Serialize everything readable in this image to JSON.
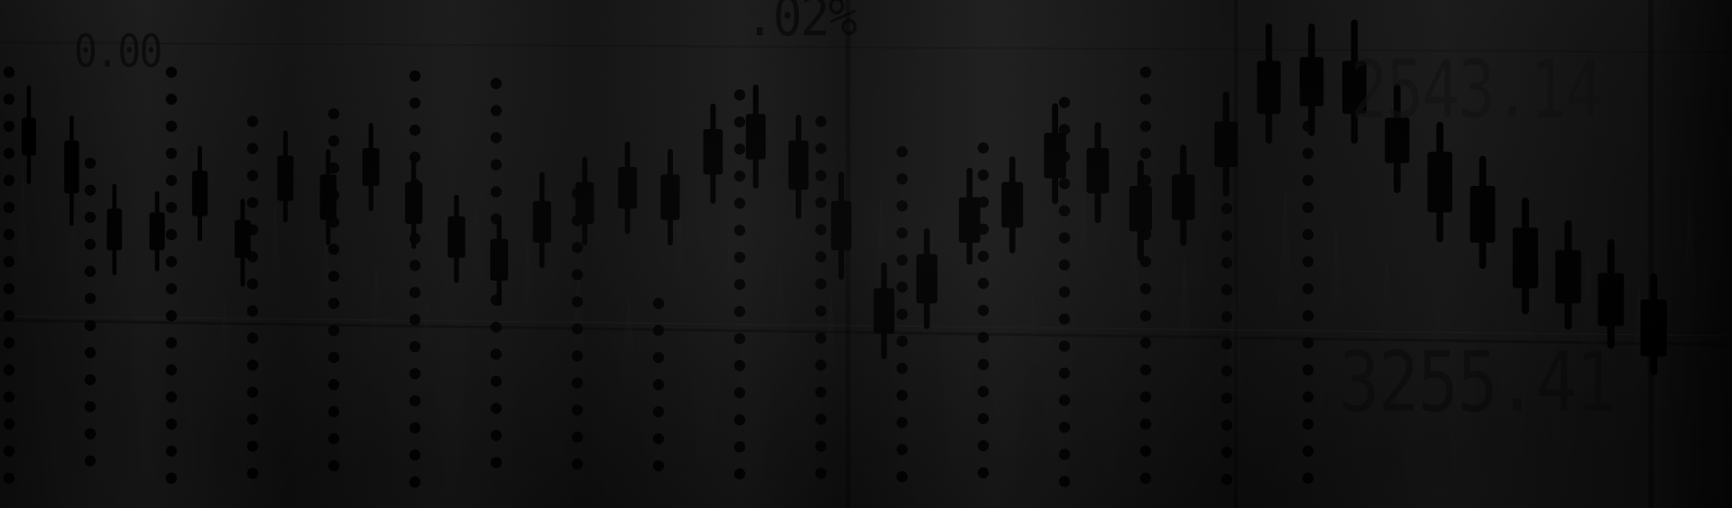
{
  "overlay_text": {
    "left_price": "0.00",
    "center_percent": ".02%",
    "right_price_top": "2543.14",
    "right_price_bottom": "3255.41"
  },
  "candlestick_visual": {
    "description_colors": {
      "background": "#141414",
      "candles": "#000000",
      "dots": "#000000"
    }
  },
  "chart_data": {
    "type": "candlestick",
    "title": "",
    "xlabel": "",
    "ylabel": "",
    "ylim": [
      0,
      100
    ],
    "candles": [
      {
        "open": 88,
        "close": 78,
        "high": 96,
        "low": 71
      },
      {
        "open": 82,
        "close": 68,
        "high": 88,
        "low": 60
      },
      {
        "open": 64,
        "close": 53,
        "high": 70,
        "low": 47
      },
      {
        "open": 63,
        "close": 53,
        "high": 68,
        "low": 48
      },
      {
        "open": 74,
        "close": 62,
        "high": 80,
        "low": 56
      },
      {
        "open": 61,
        "close": 51,
        "high": 66,
        "low": 44
      },
      {
        "open": 78,
        "close": 66,
        "high": 84,
        "low": 61
      },
      {
        "open": 73,
        "close": 61,
        "high": 79,
        "low": 55
      },
      {
        "open": 80,
        "close": 70,
        "high": 86,
        "low": 64
      },
      {
        "open": 71,
        "close": 60,
        "high": 77,
        "low": 54
      },
      {
        "open": 62,
        "close": 51,
        "high": 67,
        "low": 45
      },
      {
        "open": 56,
        "close": 45,
        "high": 61,
        "low": 39
      },
      {
        "open": 66,
        "close": 55,
        "high": 73,
        "low": 49
      },
      {
        "open": 71,
        "close": 60,
        "high": 77,
        "low": 55
      },
      {
        "open": 75,
        "close": 64,
        "high": 81,
        "low": 58
      },
      {
        "open": 73,
        "close": 61,
        "high": 79,
        "low": 55
      },
      {
        "open": 85,
        "close": 73,
        "high": 91,
        "low": 66
      },
      {
        "open": 89,
        "close": 77,
        "high": 96,
        "low": 70
      },
      {
        "open": 82,
        "close": 69,
        "high": 88,
        "low": 62
      },
      {
        "open": 66,
        "close": 53,
        "high": 73,
        "low": 46
      },
      {
        "open": 43,
        "close": 31,
        "high": 49,
        "low": 25
      },
      {
        "open": 52,
        "close": 39,
        "high": 58,
        "low": 33
      },
      {
        "open": 67,
        "close": 55,
        "high": 74,
        "low": 50
      },
      {
        "open": 71,
        "close": 59,
        "high": 77,
        "low": 53
      },
      {
        "open": 84,
        "close": 72,
        "high": 91,
        "low": 66
      },
      {
        "open": 80,
        "close": 68,
        "high": 86,
        "low": 61
      },
      {
        "open": 70,
        "close": 58,
        "high": 76,
        "low": 51
      },
      {
        "open": 73,
        "close": 61,
        "high": 80,
        "low": 55
      },
      {
        "open": 87,
        "close": 75,
        "high": 94,
        "low": 68
      },
      {
        "open": 103,
        "close": 89,
        "high": 112,
        "low": 82
      },
      {
        "open": 104,
        "close": 91,
        "high": 112,
        "low": 84
      },
      {
        "open": 103,
        "close": 89,
        "high": 113,
        "low": 82
      },
      {
        "open": 88,
        "close": 76,
        "high": 96,
        "low": 69
      },
      {
        "open": 79,
        "close": 63,
        "high": 86,
        "low": 56
      },
      {
        "open": 70,
        "close": 55,
        "high": 77,
        "low": 49
      },
      {
        "open": 59,
        "close": 43,
        "high": 66,
        "low": 37
      },
      {
        "open": 53,
        "close": 39,
        "high": 60,
        "low": 33
      },
      {
        "open": 47,
        "close": 33,
        "high": 55,
        "low": 28
      },
      {
        "open": 40,
        "close": 25,
        "high": 46,
        "low": 21
      }
    ],
    "dot_columns": [
      {
        "top": 0,
        "bottom": 100
      },
      {
        "top": 24,
        "bottom": 100
      },
      {
        "top": 0,
        "bottom": 100
      },
      {
        "top": 13,
        "bottom": 100
      },
      {
        "top": 11,
        "bottom": 100
      },
      {
        "top": 1,
        "bottom": 100
      },
      {
        "top": 3,
        "bottom": 100
      },
      {
        "top": 32,
        "bottom": 100
      },
      {
        "top": 61,
        "bottom": 100
      },
      {
        "top": 6,
        "bottom": 100
      },
      {
        "top": 13,
        "bottom": 100
      },
      {
        "top": 21,
        "bottom": 100
      },
      {
        "top": 20,
        "bottom": 100
      },
      {
        "top": 8,
        "bottom": 100
      },
      {
        "top": 0,
        "bottom": 100
      },
      {
        "top": 36,
        "bottom": 100
      },
      {
        "top": 0,
        "bottom": 100
      }
    ]
  }
}
